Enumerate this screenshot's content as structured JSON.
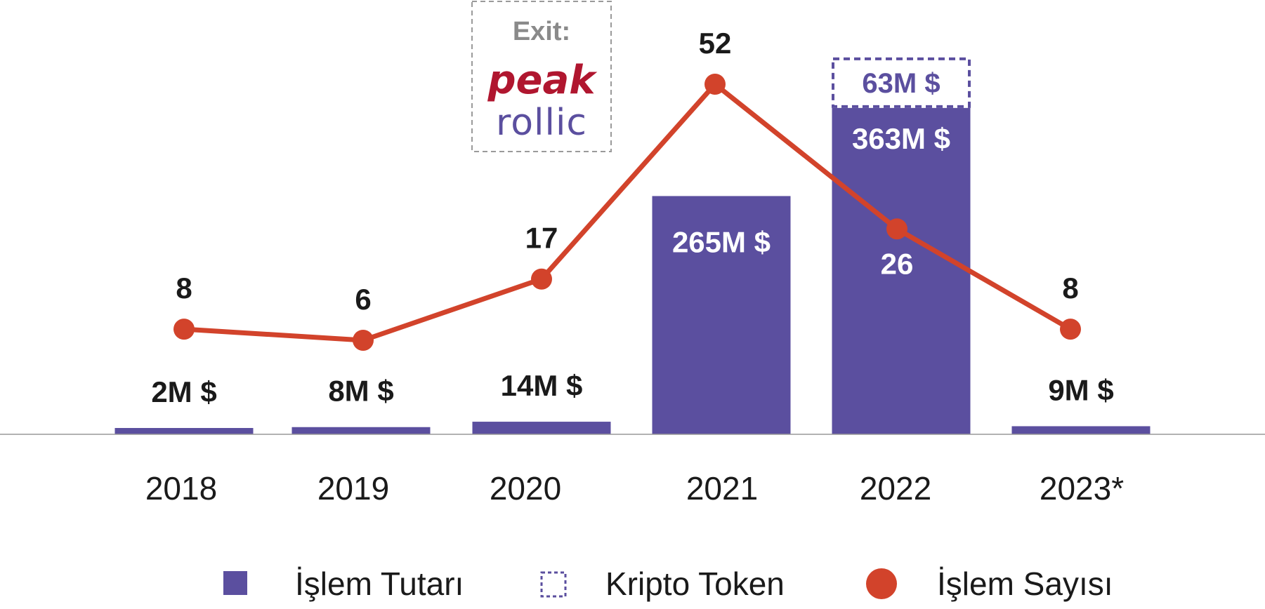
{
  "colors": {
    "bar": "#5b4f9f",
    "line": "#d2432b",
    "token_border": "#5b4f9f",
    "text_dark": "#1a1a1a",
    "text_light": "#ffffff",
    "exit_label": "#8a8a8a",
    "peak_logo": "#b0162f",
    "rollic_logo": "#5b4f9f",
    "axis": "#999999"
  },
  "chart_data": {
    "type": "bar+line",
    "categories": [
      "2018",
      "2019",
      "2020",
      "2021",
      "2022",
      "2023*"
    ],
    "series": [
      {
        "name": "İşlem Tutarı",
        "type": "bar",
        "unit": "M $",
        "values": [
          2,
          8,
          14,
          265,
          363,
          9
        ],
        "labels": [
          "2M $",
          "8M $",
          "14M $",
          "265M $",
          "363M $",
          "9M $"
        ]
      },
      {
        "name": "Kripto Token",
        "type": "bar-stacked-dashed",
        "values": [
          0,
          0,
          0,
          0,
          63,
          0
        ],
        "labels": [
          "",
          "",
          "",
          "",
          "63M $",
          ""
        ]
      },
      {
        "name": "İşlem Sayısı",
        "type": "line",
        "values": [
          8,
          6,
          17,
          52,
          26,
          8
        ],
        "labels": [
          "8",
          "6",
          "17",
          "52",
          "26",
          "8"
        ]
      }
    ],
    "annotation": {
      "category": "2020",
      "label": "Exit:",
      "logos": [
        "peak",
        "rollic"
      ]
    },
    "legend": {
      "position": "bottom",
      "items": [
        {
          "label": "İşlem Tutarı",
          "marker": "filled-square"
        },
        {
          "label": "Kripto Token",
          "marker": "dashed-square"
        },
        {
          "label": "İşlem Sayısı",
          "marker": "filled-circle"
        }
      ]
    },
    "grid": false
  }
}
